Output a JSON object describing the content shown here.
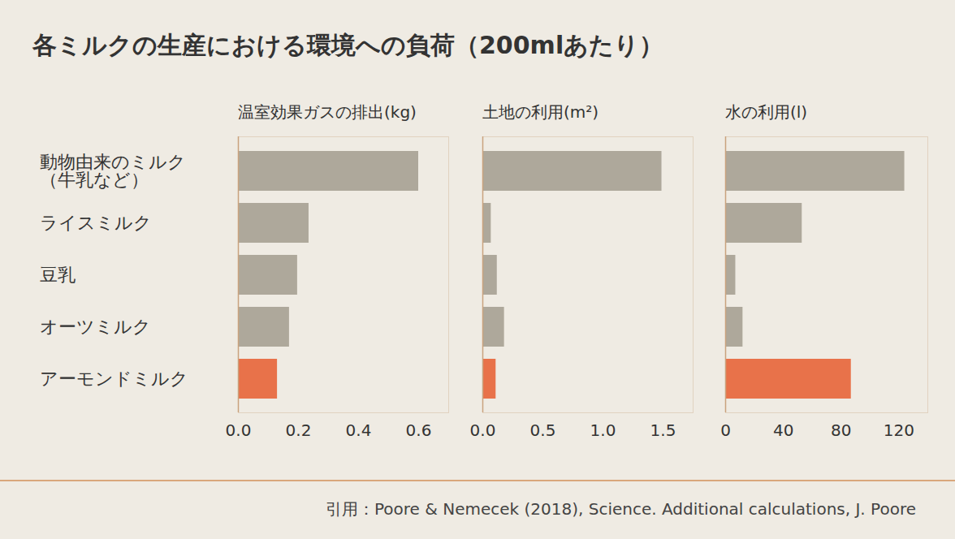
{
  "title": "各ミルクの生産における環境への負荷（200mlあたり）",
  "caption": "引用：Poore & Nemecek (2018), Science. Additional calculations, J. Poore",
  "chart_data": [
    {
      "type": "bar",
      "orientation": "horizontal",
      "title": "温室効果ガスの排出(kg)",
      "categories": [
        "動物由来のミルク\n（牛乳など）",
        "ライスミルク",
        "豆乳",
        "オーツミルク",
        "アーモンドミルク"
      ],
      "values": [
        0.6,
        0.235,
        0.197,
        0.17,
        0.13
      ],
      "colors": [
        "#aea89b",
        "#aea89b",
        "#aea89b",
        "#aea89b",
        "#e8724a"
      ],
      "xlim": [
        0,
        0.7
      ],
      "xticks": [
        {
          "value": 0,
          "label": "0.0"
        },
        0.2,
        0.4,
        0.6
      ],
      "tick_labels": true
    },
    {
      "type": "bar",
      "orientation": "horizontal",
      "title": "土地の利用(m²)",
      "categories": [
        "動物由来のミルク\n（牛乳など）",
        "ライスミルク",
        "豆乳",
        "オーツミルク",
        "アーモンドミルク"
      ],
      "values": [
        1.49,
        0.07,
        0.12,
        0.18,
        0.11
      ],
      "colors": [
        "#aea89b",
        "#aea89b",
        "#aea89b",
        "#aea89b",
        "#e8724a"
      ],
      "xlim": [
        0,
        1.75
      ],
      "xticks": [
        {
          "value": 0,
          "label": "0.0"
        },
        0.5,
        {
          "value": 1,
          "label": "1.0"
        },
        1.5
      ],
      "tick_labels": "x"
    },
    {
      "type": "bar",
      "orientation": "horizontal",
      "title": "水の利用(l)",
      "categories": [
        "動物由来のミルク\n（牛乳など）",
        "ライスミルク",
        "豆乳",
        "オーツミルク",
        "アーモンドミルク"
      ],
      "values": [
        124,
        53,
        7,
        12,
        87
      ],
      "colors": [
        "#aea89b",
        "#aea89b",
        "#aea89b",
        "#aea89b",
        "#e8724a"
      ],
      "xlim": [
        0,
        140
      ],
      "xticks": [
        0,
        40,
        80,
        120
      ],
      "tick_labels": "x"
    }
  ]
}
